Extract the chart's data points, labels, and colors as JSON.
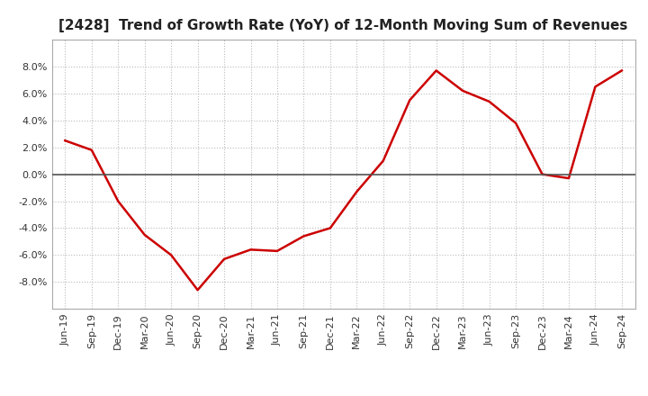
{
  "title": "[2428]  Trend of Growth Rate (YoY) of 12-Month Moving Sum of Revenues",
  "x_labels": [
    "Jun-19",
    "Sep-19",
    "Dec-19",
    "Mar-20",
    "Jun-20",
    "Sep-20",
    "Dec-20",
    "Mar-21",
    "Jun-21",
    "Sep-21",
    "Dec-21",
    "Mar-22",
    "Jun-22",
    "Sep-22",
    "Dec-22",
    "Mar-23",
    "Jun-23",
    "Sep-23",
    "Dec-23",
    "Mar-24",
    "Jun-24",
    "Sep-24"
  ],
  "values": [
    0.025,
    0.018,
    -0.02,
    -0.045,
    -0.06,
    -0.086,
    -0.063,
    -0.056,
    -0.057,
    -0.046,
    -0.04,
    -0.013,
    0.01,
    0.055,
    0.077,
    0.062,
    0.054,
    0.038,
    0.0,
    -0.003,
    0.065,
    0.077
  ],
  "line_color": "#cc0000",
  "line_width": 1.8,
  "ylim": [
    -0.1,
    0.1
  ],
  "yticks": [
    -0.08,
    -0.06,
    -0.04,
    -0.02,
    0.0,
    0.02,
    0.04,
    0.06,
    0.08
  ],
  "grid_color": "#bbbbbb",
  "zero_line_color": "#555555",
  "background_color": "#ffffff",
  "title_fontsize": 11,
  "tick_fontsize": 8,
  "title_color": "#222222"
}
